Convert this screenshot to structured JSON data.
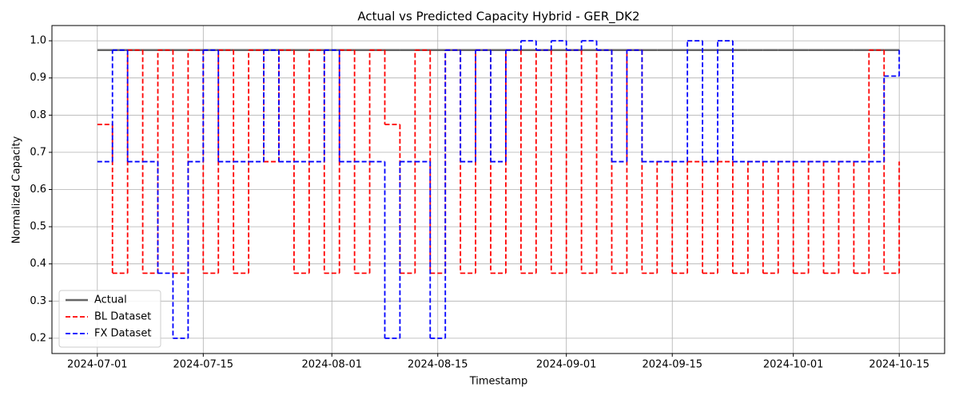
{
  "chart_data": {
    "type": "line",
    "title": "Actual vs Predicted Capacity Hybrid - GER_DK2",
    "x_label": "Timestamp",
    "y_label": "Normalized Capacity",
    "x": [
      "2024-07-01",
      "2024-07-03",
      "2024-07-05",
      "2024-07-07",
      "2024-07-09",
      "2024-07-11",
      "2024-07-13",
      "2024-07-15",
      "2024-07-17",
      "2024-07-19",
      "2024-07-21",
      "2024-07-23",
      "2024-07-25",
      "2024-07-27",
      "2024-07-29",
      "2024-07-31",
      "2024-08-02",
      "2024-08-04",
      "2024-08-06",
      "2024-08-08",
      "2024-08-10",
      "2024-08-12",
      "2024-08-14",
      "2024-08-16",
      "2024-08-18",
      "2024-08-20",
      "2024-08-22",
      "2024-08-24",
      "2024-08-26",
      "2024-08-28",
      "2024-08-30",
      "2024-09-01",
      "2024-09-03",
      "2024-09-05",
      "2024-09-07",
      "2024-09-09",
      "2024-09-11",
      "2024-09-13",
      "2024-09-15",
      "2024-09-17",
      "2024-09-19",
      "2024-09-21",
      "2024-09-23",
      "2024-09-25",
      "2024-09-27",
      "2024-09-29",
      "2024-10-01",
      "2024-10-03",
      "2024-10-05",
      "2024-10-07",
      "2024-10-09",
      "2024-10-11",
      "2024-10-13",
      "2024-10-15"
    ],
    "series": [
      {
        "name": "Actual",
        "color": "#666666",
        "dash": false,
        "values": [
          0.975,
          0.975,
          0.975,
          0.975,
          0.975,
          0.975,
          0.975,
          0.975,
          0.975,
          0.975,
          0.975,
          0.975,
          0.975,
          0.975,
          0.975,
          0.975,
          0.975,
          0.975,
          0.975,
          0.975,
          0.975,
          0.975,
          0.975,
          0.975,
          0.975,
          0.975,
          0.975,
          0.975,
          0.975,
          0.975,
          0.975,
          0.975,
          0.975,
          0.975,
          0.975,
          0.975,
          0.975,
          0.975,
          0.975,
          0.975,
          0.975,
          0.975,
          0.975,
          0.975,
          0.975,
          0.975,
          0.975,
          0.975,
          0.975,
          0.975,
          0.975,
          0.975,
          0.975,
          0.975
        ]
      },
      {
        "name": "BL Dataset",
        "color": "#ff0000",
        "dash": true,
        "values": [
          0.775,
          0.375,
          0.975,
          0.375,
          0.975,
          0.375,
          0.975,
          0.375,
          0.975,
          0.375,
          0.975,
          0.675,
          0.975,
          0.375,
          0.975,
          0.375,
          0.975,
          0.375,
          0.975,
          0.775,
          0.375,
          0.975,
          0.375,
          0.975,
          0.375,
          0.975,
          0.375,
          0.975,
          0.375,
          0.975,
          0.375,
          0.975,
          0.375,
          0.975,
          0.375,
          0.975,
          0.375,
          0.675,
          0.375,
          0.675,
          0.375,
          0.675,
          0.375,
          0.675,
          0.375,
          0.675,
          0.375,
          0.675,
          0.375,
          0.675,
          0.375,
          0.975,
          0.375,
          0.675
        ]
      },
      {
        "name": "FX Dataset",
        "color": "#0000ff",
        "dash": true,
        "values": [
          0.675,
          0.975,
          0.675,
          0.675,
          0.375,
          0.2,
          0.675,
          0.975,
          0.675,
          0.675,
          0.675,
          0.975,
          0.675,
          0.675,
          0.675,
          0.975,
          0.675,
          0.675,
          0.675,
          0.2,
          0.675,
          0.675,
          0.2,
          0.975,
          0.675,
          0.975,
          0.675,
          0.975,
          1.0,
          0.975,
          1.0,
          0.975,
          1.0,
          0.975,
          0.675,
          0.975,
          0.675,
          0.675,
          0.675,
          1.0,
          0.675,
          1.0,
          0.675,
          0.675,
          0.675,
          0.675,
          0.675,
          0.675,
          0.675,
          0.675,
          0.675,
          0.675,
          0.905,
          0.975
        ]
      }
    ],
    "xlim": [
      "2024-06-25",
      "2024-10-21"
    ],
    "xticks": [
      "2024-07-01",
      "2024-07-15",
      "2024-08-01",
      "2024-08-15",
      "2024-09-01",
      "2024-09-15",
      "2024-10-01",
      "2024-10-15"
    ],
    "ylim": [
      0.159,
      1.041
    ],
    "yticks": [
      0.2,
      0.3,
      0.4,
      0.5,
      0.6,
      0.7,
      0.8,
      0.9,
      {
        "value": 1,
        "label": "1.0"
      }
    ],
    "grid": true,
    "legend": "lower left",
    "step": true
  }
}
